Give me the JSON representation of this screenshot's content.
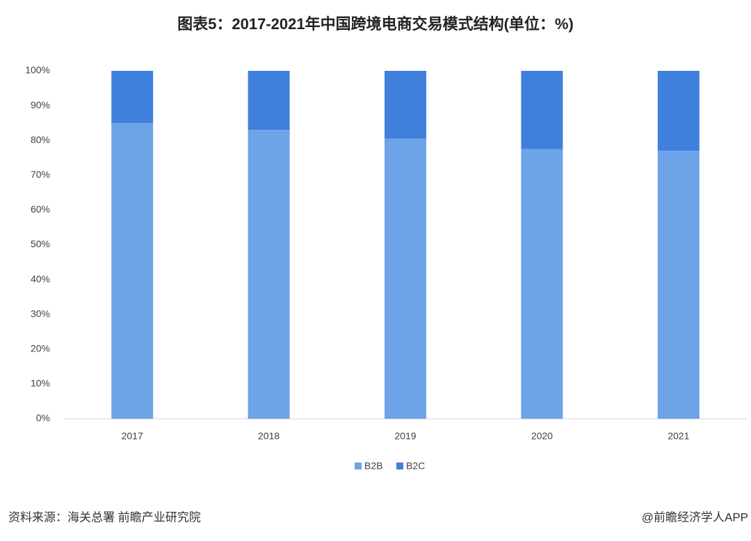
{
  "chart_data": {
    "type": "stacked_bar",
    "title": "图表5：2017-2021年中国跨境电商交易模式结构(单位：%)",
    "categories": [
      "2017",
      "2018",
      "2019",
      "2020",
      "2021"
    ],
    "series": [
      {
        "name": "B2B",
        "color": "#6fa3e8",
        "values": [
          85,
          83,
          80.5,
          77.5,
          77
        ]
      },
      {
        "name": "B2C",
        "color": "#3f80dc",
        "values": [
          15,
          17,
          19.5,
          22.5,
          23
        ]
      }
    ],
    "ylim": [
      0,
      100
    ],
    "yticks": [
      {
        "value": 0,
        "label": "0%"
      },
      {
        "value": 10,
        "label": "10%"
      },
      {
        "value": 20,
        "label": "20%"
      },
      {
        "value": 30,
        "label": "30%"
      },
      {
        "value": 40,
        "label": "40%"
      },
      {
        "value": 50,
        "label": "50%"
      },
      {
        "value": 60,
        "label": "60%"
      },
      {
        "value": 70,
        "label": "70%"
      },
      {
        "value": 80,
        "label": "80%"
      },
      {
        "value": 90,
        "label": "90%"
      },
      {
        "value": 100,
        "label": "100%"
      }
    ],
    "legend": "bottom"
  },
  "footer": {
    "source": "资料来源：海关总署 前瞻产业研究院",
    "credit": "@前瞻经济学人APP"
  }
}
